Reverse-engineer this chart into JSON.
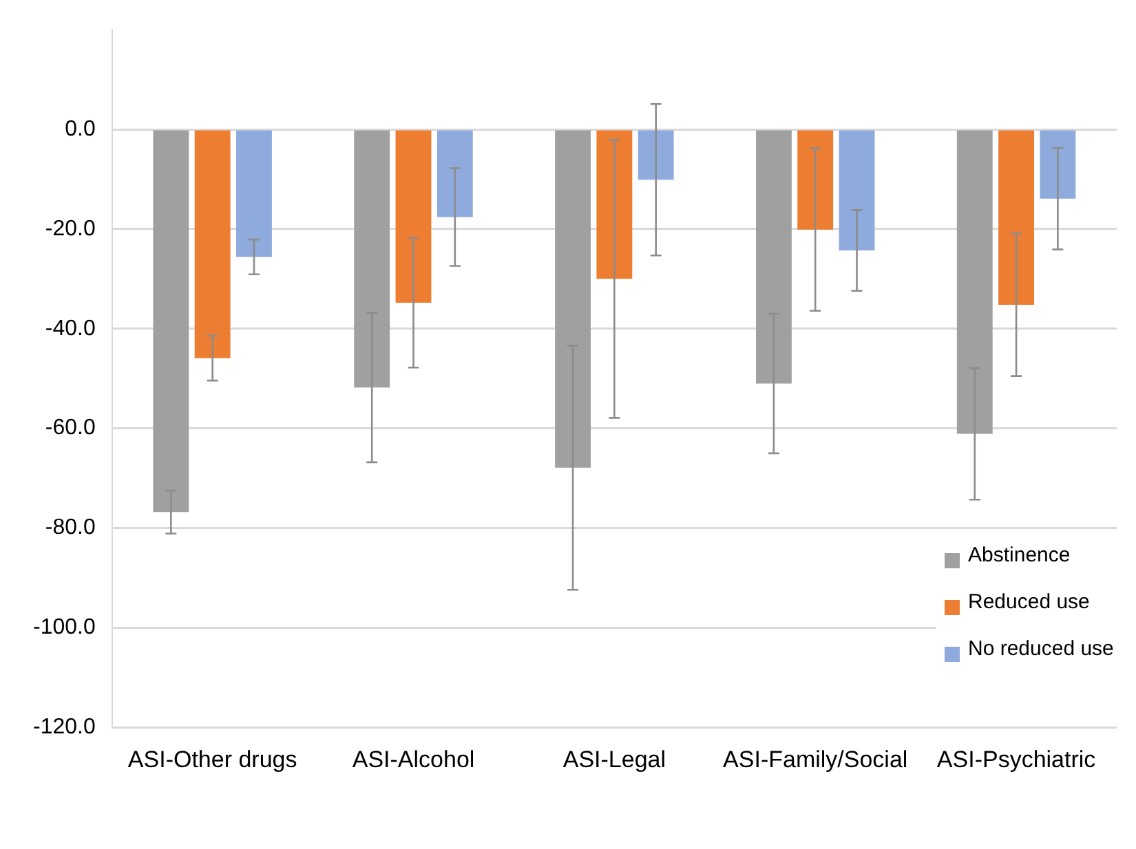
{
  "chart_data": {
    "type": "bar",
    "categories": [
      "ASI-Other drugs",
      "ASI-Alcohol",
      "ASI-Legal",
      "ASI-Family/Social",
      "ASI-Psychiatric"
    ],
    "series": [
      {
        "name": "Abstinence",
        "color": "#a0a0a0",
        "values": [
          -76.8,
          -51.8,
          -67.9,
          -51.0,
          -61.1
        ],
        "errors": [
          4.3,
          15.0,
          24.5,
          14.0,
          13.2
        ]
      },
      {
        "name": "Reduced use",
        "color": "#ed7d31",
        "values": [
          -45.9,
          -34.8,
          -30.0,
          -20.1,
          -35.2
        ],
        "errors": [
          4.5,
          13.0,
          27.9,
          16.3,
          14.3
        ]
      },
      {
        "name": "No reduced use",
        "color": "#8faadc",
        "values": [
          -25.6,
          -17.6,
          -10.1,
          -24.3,
          -13.9
        ],
        "errors": [
          3.5,
          9.8,
          15.2,
          8.1,
          10.2
        ]
      }
    ],
    "ylim": [
      -120,
      20
    ],
    "yticks": [
      {
        "value": -120,
        "label": "-120.0"
      },
      {
        "value": -100,
        "label": "-100.0"
      },
      {
        "value": -80,
        "label": "-80.0"
      },
      {
        "value": -60,
        "label": "-60.0"
      },
      {
        "value": -40,
        "label": "-40.0"
      },
      {
        "value": -20,
        "label": "-20.0"
      },
      {
        "value": 0,
        "label": "0.0"
      }
    ],
    "grid": "y",
    "legend": "bottom right"
  }
}
